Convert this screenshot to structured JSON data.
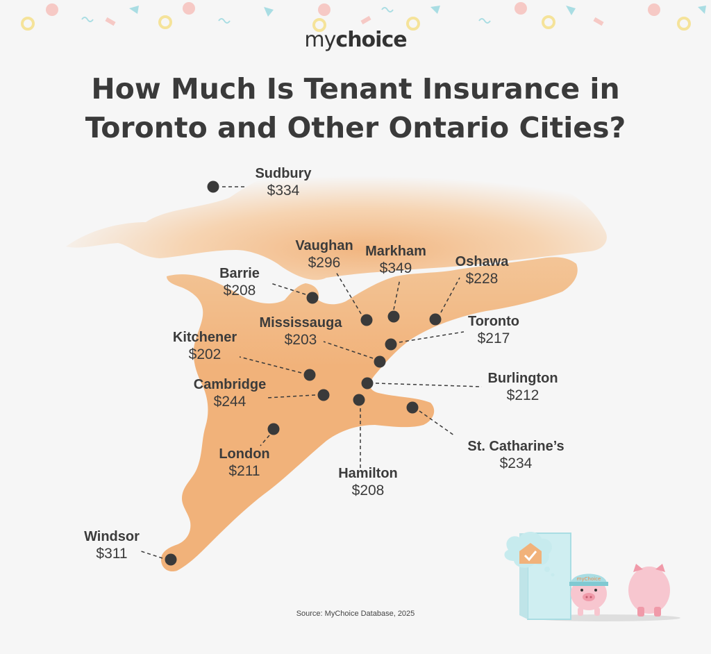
{
  "brand": {
    "logo_light": "my",
    "logo_bold": "choice"
  },
  "title": "How Much Is Tenant Insurance in Toronto and Other Ontario Cities?",
  "source": "Source: MyChoice Database, 2025",
  "colors": {
    "land": "#f1b27a",
    "background": "#f6f6f6",
    "marker": "#3a3a3a",
    "text": "#3b3b3b"
  },
  "cities": [
    {
      "id": "sudbury",
      "name": "Sudbury",
      "price": "$334"
    },
    {
      "id": "vaughan",
      "name": "Vaughan",
      "price": "$296"
    },
    {
      "id": "markham",
      "name": "Markham",
      "price": "$349"
    },
    {
      "id": "oshawa",
      "name": "Oshawa",
      "price": "$228"
    },
    {
      "id": "barrie",
      "name": "Barrie",
      "price": "$208"
    },
    {
      "id": "mississauga",
      "name": "Mississauga",
      "price": "$203"
    },
    {
      "id": "toronto",
      "name": "Toronto",
      "price": "$217"
    },
    {
      "id": "kitchener",
      "name": "Kitchener",
      "price": "$202"
    },
    {
      "id": "cambridge",
      "name": "Cambridge",
      "price": "$244"
    },
    {
      "id": "burlington",
      "name": "Burlington",
      "price": "$212"
    },
    {
      "id": "st-catharines",
      "name": "St. Catharine’s",
      "price": "$234"
    },
    {
      "id": "london",
      "name": "London",
      "price": "$211"
    },
    {
      "id": "hamilton",
      "name": "Hamilton",
      "price": "$208"
    },
    {
      "id": "windsor",
      "name": "Windsor",
      "price": "$311"
    }
  ],
  "mascot": {
    "cap_text": "myChoice",
    "icons": [
      "house-check-icon",
      "piggy-bank-icon"
    ]
  }
}
